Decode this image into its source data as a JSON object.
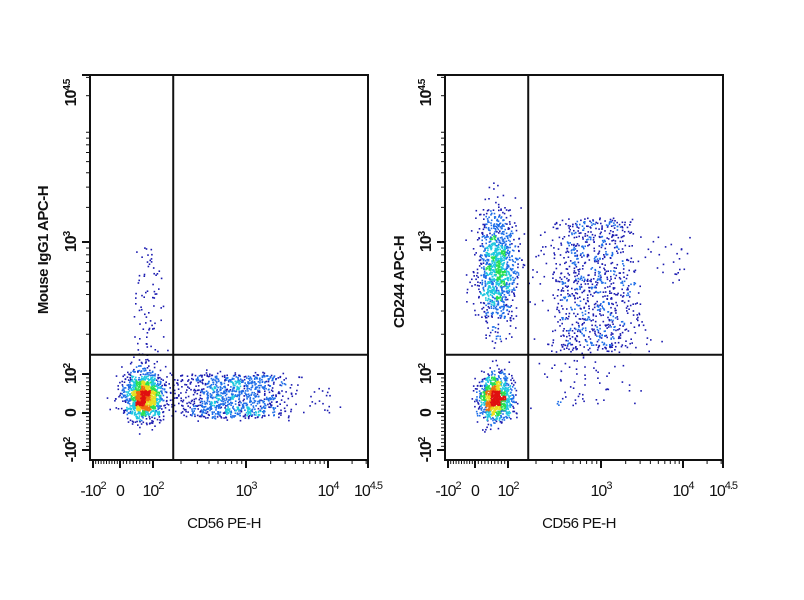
{
  "chart_data": [
    {
      "type": "scatter",
      "subtype": "flow-cytometry-density-dot-plot",
      "xlabel": "CD56 PE-H",
      "ylabel": "Mouse IgG1 APC-H",
      "x_scale": "biexponential",
      "y_scale": "biexponential",
      "xlim": [
        -100,
        31623
      ],
      "ylim": [
        -100,
        31623
      ],
      "x_ticks": [
        {
          "value": -100,
          "base": "-10",
          "exp": "2"
        },
        {
          "value": 0,
          "base": "0",
          "exp": ""
        },
        {
          "value": 100,
          "base": "10",
          "exp": "2"
        },
        {
          "value": 1000,
          "base": "10",
          "exp": "3"
        },
        {
          "value": 10000,
          "base": "10",
          "exp": "4"
        },
        {
          "value": 31623,
          "base": "10",
          "exp": "4.5"
        }
      ],
      "y_ticks": [
        {
          "value": -100,
          "base": "-10",
          "exp": "2"
        },
        {
          "value": 0,
          "base": "0",
          "exp": ""
        },
        {
          "value": 100,
          "base": "10",
          "exp": "2"
        },
        {
          "value": 1000,
          "base": "10",
          "exp": "3"
        },
        {
          "value": 31623,
          "base": "10",
          "exp": "4.5"
        }
      ],
      "quadrant_gate": {
        "x": 165,
        "y": 140
      },
      "populations": [
        {
          "center": [
            70,
            45
          ],
          "x_range": [
            0,
            130
          ],
          "y_range": [
            -20,
            110
          ],
          "count": 1300,
          "shape": "gaussian"
        },
        {
          "center": [
            800,
            45
          ],
          "x_range": [
            130,
            3500
          ],
          "y_range": [
            -10,
            100
          ],
          "count": 1000,
          "shape": "uniform"
        },
        {
          "center": [
            80,
            250
          ],
          "x_range": [
            40,
            140
          ],
          "y_range": [
            100,
            900
          ],
          "count": 90,
          "shape": "uniform"
        },
        {
          "center": [
            8000,
            45
          ],
          "x_range": [
            5000,
            14000
          ],
          "y_range": [
            10,
            90
          ],
          "count": 18,
          "shape": "uniform"
        }
      ],
      "colormap": [
        "#1a1ab0",
        "#1e6ee8",
        "#1ec8e0",
        "#28e050",
        "#e8e020",
        "#f07010",
        "#e01010"
      ]
    },
    {
      "type": "scatter",
      "subtype": "flow-cytometry-density-dot-plot",
      "xlabel": "CD56 PE-H",
      "ylabel": "CD244 APC-H",
      "x_scale": "biexponential",
      "y_scale": "biexponential",
      "xlim": [
        -100,
        31623
      ],
      "ylim": [
        -100,
        31623
      ],
      "x_ticks": [
        {
          "value": -100,
          "base": "-10",
          "exp": "2"
        },
        {
          "value": 0,
          "base": "0",
          "exp": ""
        },
        {
          "value": 100,
          "base": "10",
          "exp": "2"
        },
        {
          "value": 1000,
          "base": "10",
          "exp": "3"
        },
        {
          "value": 10000,
          "base": "10",
          "exp": "4"
        },
        {
          "value": 31623,
          "base": "10",
          "exp": "4.5"
        }
      ],
      "y_ticks": [
        {
          "value": -100,
          "base": "-10",
          "exp": "2"
        },
        {
          "value": 0,
          "base": "0",
          "exp": ""
        },
        {
          "value": 100,
          "base": "10",
          "exp": "2"
        },
        {
          "value": 1000,
          "base": "10",
          "exp": "3"
        },
        {
          "value": 31623,
          "base": "10",
          "exp": "4.5"
        }
      ],
      "quadrant_gate": {
        "x": 165,
        "y": 140
      },
      "populations": [
        {
          "center": [
            60,
            40
          ],
          "x_range": [
            5,
            120
          ],
          "y_range": [
            -15,
            110
          ],
          "count": 1000,
          "shape": "gaussian"
        },
        {
          "center": [
            65,
            650
          ],
          "x_range": [
            5,
            140
          ],
          "y_range": [
            150,
            1500
          ],
          "count": 1100,
          "shape": "gaussian"
        },
        {
          "center": [
            1200,
            700
          ],
          "x_range": [
            170,
            3000
          ],
          "y_range": [
            150,
            1600
          ],
          "count": 950,
          "shape": "uniform"
        },
        {
          "center": [
            700,
            80
          ],
          "x_range": [
            170,
            2500
          ],
          "y_range": [
            15,
            140
          ],
          "count": 60,
          "shape": "uniform"
        },
        {
          "center": [
            9000,
            900
          ],
          "x_range": [
            5000,
            15000
          ],
          "y_range": [
            500,
            1200
          ],
          "count": 18,
          "shape": "uniform"
        }
      ],
      "colormap": [
        "#1a1ab0",
        "#1e6ee8",
        "#1ec8e0",
        "#28e050",
        "#e8e020",
        "#f07010",
        "#e01010"
      ]
    }
  ]
}
